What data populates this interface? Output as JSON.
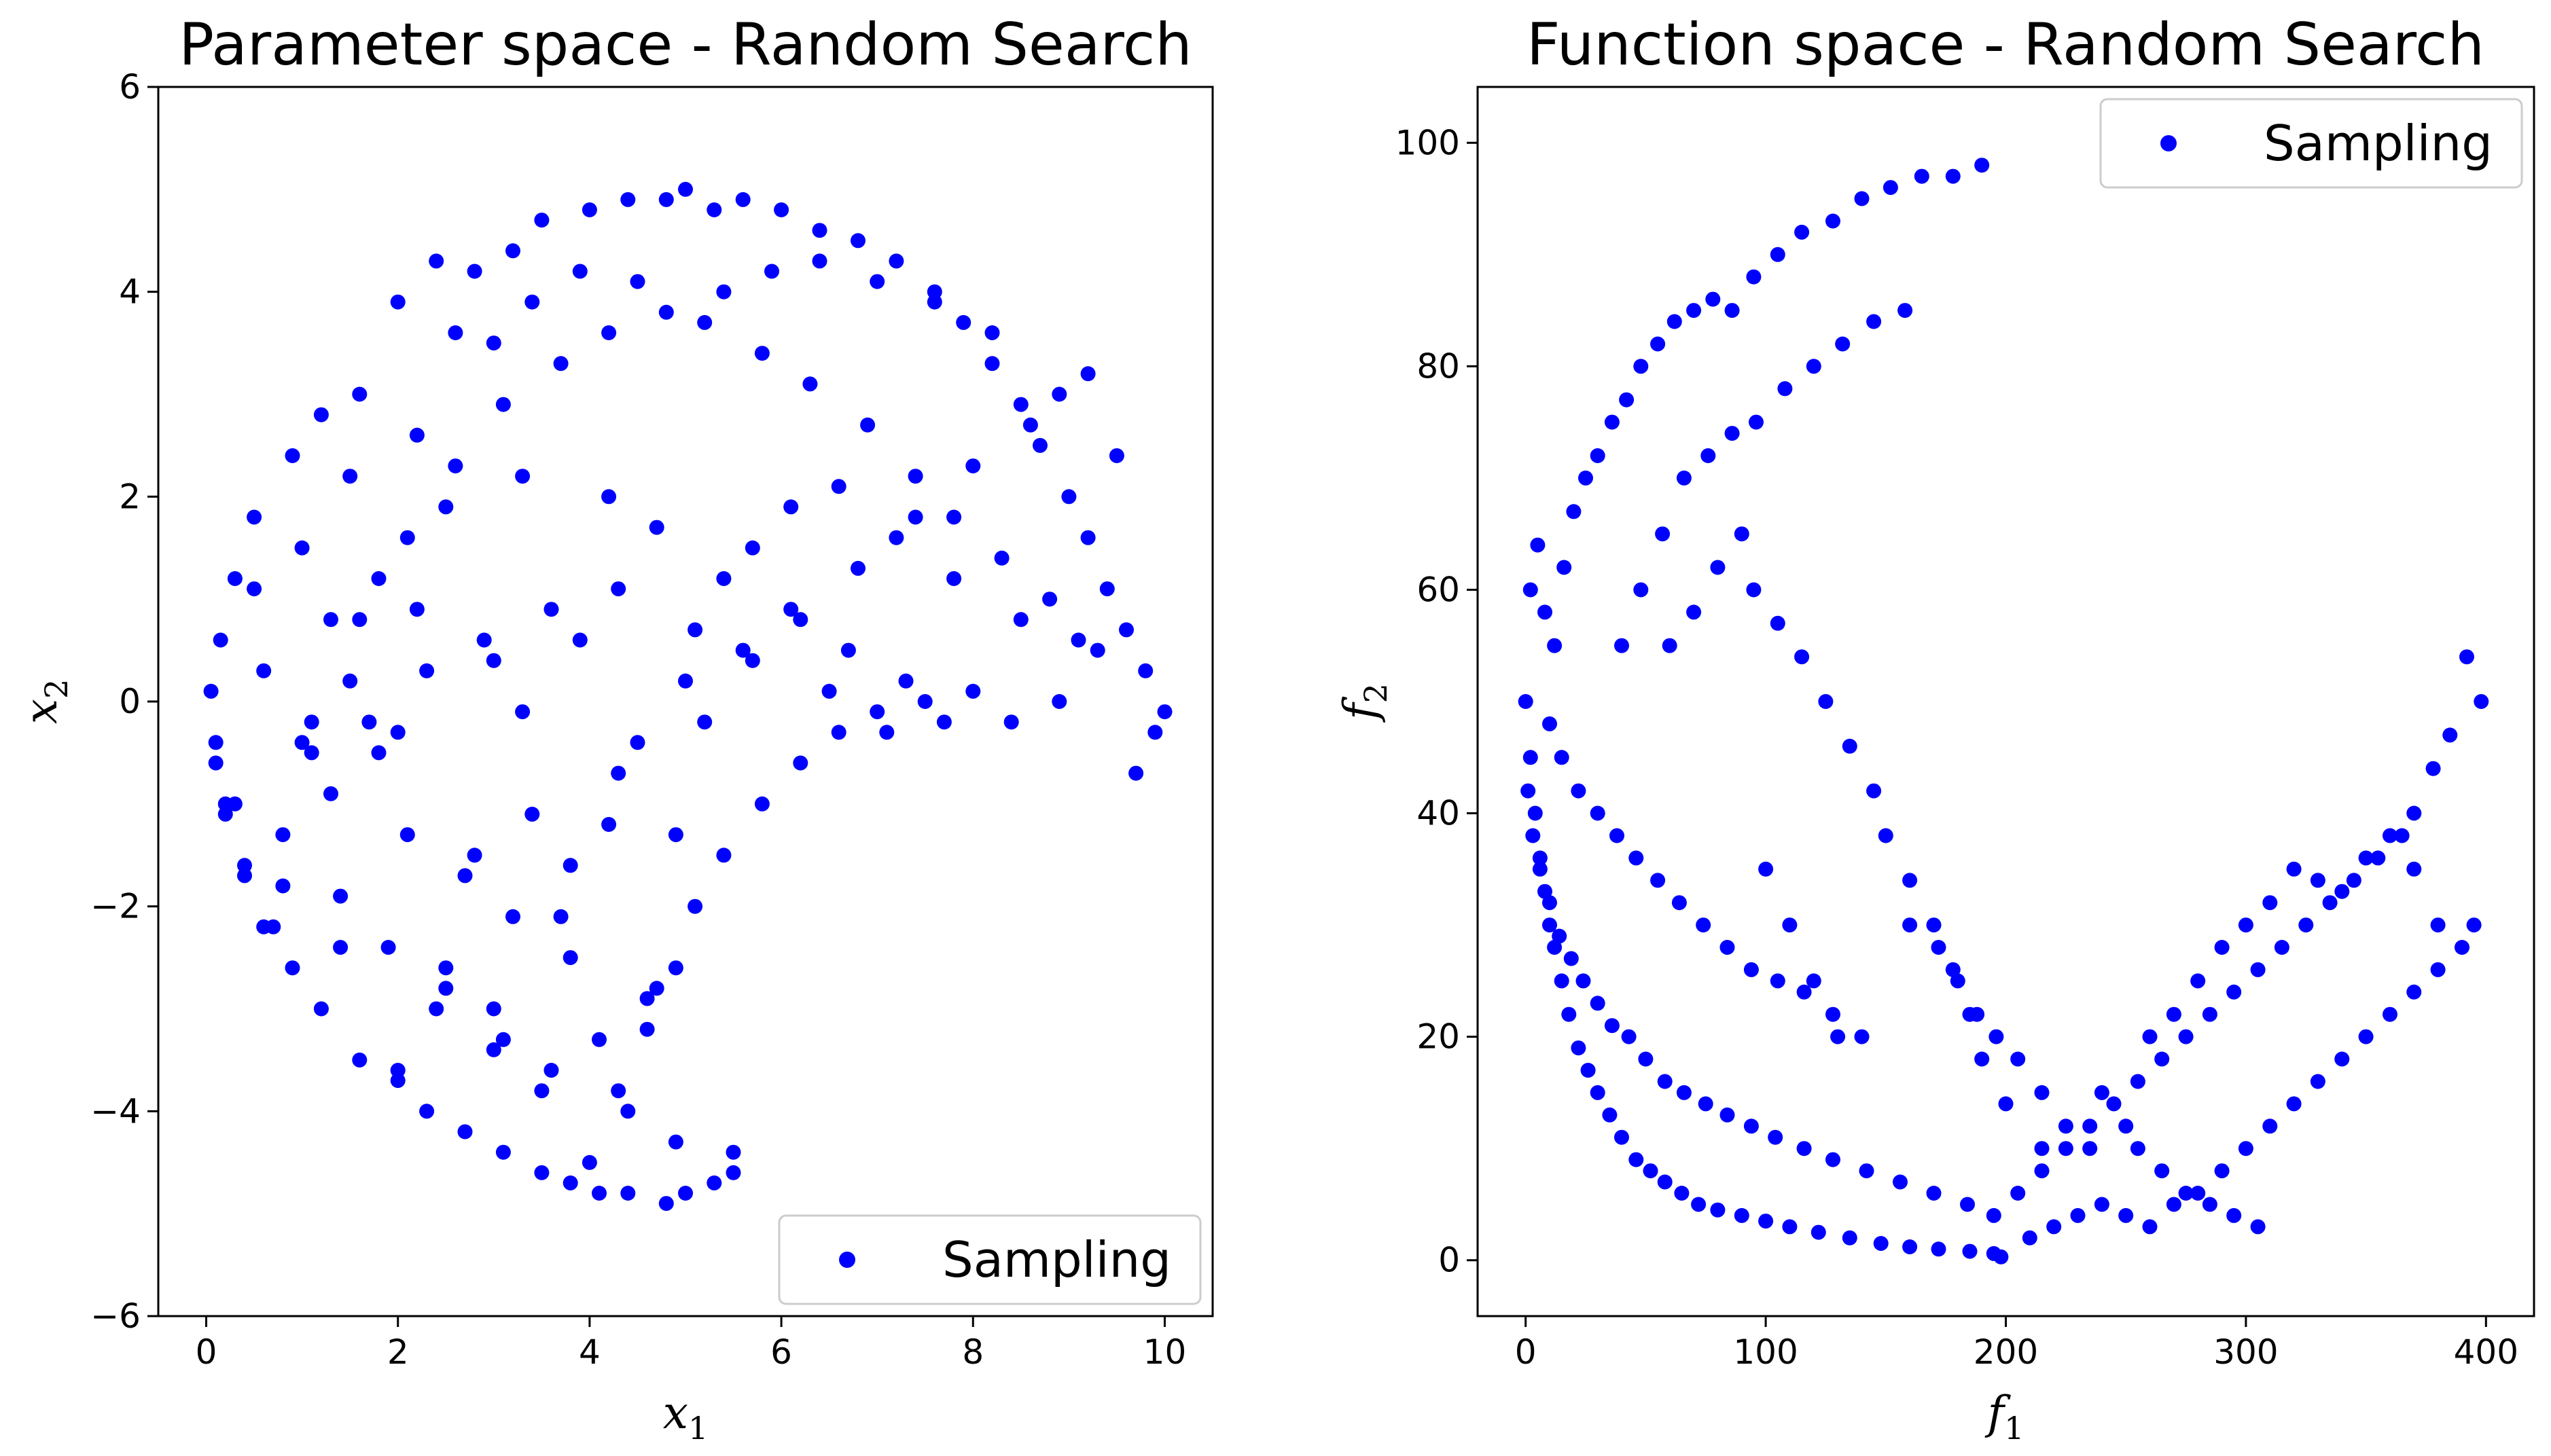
{
  "chart_data": [
    {
      "type": "scatter",
      "title": "Parameter space - Random Search",
      "xlabel": "x",
      "xlabel_sub": "1",
      "ylabel": "x",
      "ylabel_sub": "2",
      "xlim": [
        -0.5,
        10.5
      ],
      "ylim": [
        -6,
        6
      ],
      "xticks": [
        0,
        2,
        4,
        6,
        8,
        10
      ],
      "yticks": [
        -6,
        -4,
        -2,
        0,
        2,
        4,
        6
      ],
      "legend": {
        "label": "Sampling",
        "placement": "lower-right"
      },
      "marker_color": "#0000ff",
      "series": [
        {
          "name": "Sampling",
          "x": [
            0.05,
            0.1,
            0.15,
            0.2,
            0.3,
            0.4,
            0.5,
            0.7,
            0.9,
            1.2,
            1.6,
            2.0,
            2.4,
            2.8,
            3.2,
            3.5,
            4.0,
            4.4,
            4.8,
            5.0,
            5.3,
            5.6,
            6.0,
            6.4,
            6.8,
            7.2,
            7.6,
            7.9,
            8.2,
            8.5,
            8.7,
            9.0,
            9.2,
            9.4,
            9.6,
            9.8,
            9.9,
            10.0,
            9.7,
            9.3,
            8.9,
            8.4,
            8.0,
            7.5,
            7.0,
            6.6,
            6.2,
            5.8,
            5.4,
            5.1,
            4.9,
            4.6,
            4.3,
            4.0,
            5.5,
            5.3,
            5.0,
            4.8,
            4.4,
            4.1,
            3.8,
            3.5,
            3.1,
            2.7,
            2.3,
            2.0,
            1.6,
            1.2,
            0.9,
            0.6,
            0.4,
            0.2,
            0.1,
            1.0,
            1.5,
            2.2,
            2.6,
            3.0,
            3.4,
            3.9,
            4.5,
            5.2,
            5.8,
            6.3,
            6.9,
            7.4,
            7.8,
            8.3,
            8.8,
            9.1,
            1.3,
            1.8,
            2.5,
            3.3,
            4.2,
            4.7,
            5.4,
            6.1,
            6.7,
            7.3,
            7.7,
            1.1,
            1.7,
            2.3,
            2.9,
            3.6,
            4.3,
            5.1,
            5.7,
            6.5,
            7.1,
            2.1,
            2.7,
            3.2,
            3.8,
            4.6,
            1.4,
            1.9,
            2.4,
            3.0,
            3.5,
            4.1,
            4.7,
            0.8,
            1.3,
            1.8,
            2.8,
            3.7,
            4.2,
            2.5,
            3.1,
            3.6,
            4.4,
            4.9,
            5.5,
            0.6,
            1.0,
            1.5,
            2.0,
            2.2,
            3.0,
            3.3,
            3.9,
            4.5,
            5.0,
            5.6,
            6.2,
            6.8,
            7.4,
            8.0,
            8.6,
            9.2,
            0.5,
            1.1,
            1.6,
            2.1,
            2.6,
            3.1,
            3.7,
            4.2,
            4.8,
            5.4,
            5.9,
            6.4,
            7.0,
            7.6,
            8.2,
            8.9,
            9.5,
            0.3,
            0.8,
            1.4,
            2.0,
            2.5,
            3.0,
            3.4,
            3.8,
            4.3,
            4.9,
            5.2,
            5.7,
            6.1,
            6.6,
            7.2,
            7.8,
            8.5
          ],
          "y": [
            0.1,
            -0.4,
            0.6,
            -1.0,
            1.2,
            -1.6,
            1.8,
            -2.2,
            2.4,
            2.8,
            3.0,
            3.9,
            4.3,
            4.2,
            4.4,
            4.7,
            4.8,
            4.9,
            4.9,
            5.0,
            4.8,
            4.9,
            4.8,
            4.6,
            4.5,
            4.3,
            4.0,
            3.7,
            3.3,
            2.9,
            2.5,
            2.0,
            1.6,
            1.1,
            0.7,
            0.3,
            -0.3,
            -0.1,
            -0.7,
            0.5,
            0.0,
            -0.2,
            0.1,
            0.0,
            -0.1,
            -0.3,
            -0.6,
            -1.0,
            -1.5,
            -2.0,
            -2.6,
            -3.2,
            -3.8,
            -4.5,
            -4.4,
            -4.7,
            -4.8,
            -4.9,
            -4.8,
            -4.8,
            -4.7,
            -4.6,
            -4.4,
            -4.2,
            -4.0,
            -3.7,
            -3.5,
            -3.0,
            -2.6,
            -2.2,
            -1.7,
            -1.1,
            -0.6,
            1.5,
            2.2,
            2.6,
            3.6,
            3.5,
            3.9,
            4.2,
            4.1,
            3.7,
            3.4,
            3.1,
            2.7,
            2.2,
            1.8,
            1.4,
            1.0,
            0.6,
            0.8,
            1.2,
            1.9,
            2.2,
            2.0,
            1.7,
            1.2,
            0.9,
            0.5,
            0.2,
            -0.2,
            -0.5,
            -0.2,
            0.3,
            0.6,
            0.9,
            1.1,
            0.7,
            0.4,
            0.1,
            -0.3,
            -1.3,
            -1.7,
            -2.1,
            -2.5,
            -2.9,
            -1.9,
            -2.4,
            -3.0,
            -3.4,
            -3.8,
            -3.3,
            -2.8,
            -1.3,
            -0.9,
            -0.5,
            -1.5,
            -2.1,
            -1.2,
            -2.8,
            -3.3,
            -3.6,
            -4.0,
            -4.3,
            -4.6,
            0.3,
            -0.4,
            0.2,
            -0.3,
            0.9,
            0.4,
            -0.1,
            0.6,
            -0.4,
            0.2,
            0.5,
            0.8,
            1.3,
            1.8,
            2.3,
            2.7,
            3.2,
            1.1,
            -0.2,
            0.8,
            1.6,
            2.3,
            2.9,
            3.3,
            3.6,
            3.8,
            4.0,
            4.2,
            4.3,
            4.1,
            3.9,
            3.6,
            3.0,
            2.4,
            -1.0,
            -1.8,
            -2.4,
            -3.6,
            -2.6,
            -3.0,
            -1.1,
            -1.6,
            -0.7,
            -1.3,
            -0.2,
            1.5,
            1.9,
            2.1,
            1.6,
            1.2,
            0.8
          ]
        }
      ]
    },
    {
      "type": "scatter",
      "title": "Function space - Random Search",
      "xlabel": "f",
      "xlabel_sub": "1",
      "ylabel": "f",
      "ylabel_sub": "2",
      "xlim": [
        -20,
        420
      ],
      "ylim": [
        -5,
        105
      ],
      "xticks": [
        0,
        100,
        200,
        300,
        400
      ],
      "yticks": [
        0,
        20,
        40,
        60,
        80,
        100
      ],
      "legend": {
        "label": "Sampling",
        "placement": "upper-right"
      },
      "marker_color": "#0000ff",
      "series": [
        {
          "name": "Sampling",
          "x": [
            0,
            2,
            4,
            6,
            8,
            10,
            12,
            15,
            18,
            22,
            26,
            30,
            35,
            40,
            46,
            52,
            58,
            65,
            72,
            80,
            90,
            100,
            110,
            122,
            135,
            148,
            160,
            172,
            185,
            195,
            198,
            2,
            5,
            8,
            12,
            16,
            20,
            25,
            30,
            36,
            42,
            48,
            55,
            62,
            70,
            78,
            86,
            95,
            105,
            115,
            128,
            140,
            152,
            165,
            178,
            190,
            1,
            3,
            6,
            10,
            14,
            19,
            24,
            30,
            36,
            43,
            50,
            58,
            66,
            75,
            84,
            94,
            104,
            116,
            128,
            142,
            156,
            170,
            184,
            10,
            15,
            22,
            30,
            38,
            46,
            55,
            64,
            74,
            84,
            94,
            105,
            116,
            128,
            140,
            40,
            48,
            57,
            66,
            76,
            86,
            96,
            108,
            120,
            132,
            145,
            158,
            160,
            172,
            180,
            188,
            196,
            205,
            215,
            225,
            235,
            210,
            220,
            230,
            240,
            250,
            260,
            270,
            280,
            290,
            300,
            310,
            320,
            330,
            340,
            350,
            360,
            370,
            380,
            390,
            395,
            398,
            392,
            385,
            378,
            370,
            365,
            355,
            345,
            335,
            325,
            315,
            305,
            295,
            285,
            275,
            265,
            255,
            245,
            235,
            225,
            215,
            205,
            195,
            260,
            270,
            280,
            290,
            300,
            310,
            320,
            330,
            340,
            350,
            360,
            370,
            380,
            240,
            250,
            255,
            265,
            275,
            285,
            295,
            305,
            100,
            110,
            120,
            130,
            60,
            70,
            80,
            90,
            95,
            105,
            115,
            125,
            135,
            145,
            150,
            160,
            170,
            178,
            185,
            190,
            200,
            215
          ],
          "y": [
            50,
            45,
            40,
            36,
            33,
            30,
            28,
            25,
            22,
            19,
            17,
            15,
            13,
            11,
            9,
            8,
            7,
            6,
            5,
            4.5,
            4,
            3.5,
            3,
            2.5,
            2,
            1.5,
            1.2,
            1,
            0.8,
            0.6,
            0.3,
            60,
            64,
            58,
            55,
            62,
            67,
            70,
            72,
            75,
            77,
            80,
            82,
            84,
            85,
            86,
            85,
            88,
            90,
            92,
            93,
            95,
            96,
            97,
            97,
            98,
            42,
            38,
            35,
            32,
            29,
            27,
            25,
            23,
            21,
            20,
            18,
            16,
            15,
            14,
            13,
            12,
            11,
            10,
            9,
            8,
            7,
            6,
            5,
            48,
            45,
            42,
            40,
            38,
            36,
            34,
            32,
            30,
            28,
            26,
            25,
            24,
            22,
            20,
            55,
            60,
            65,
            70,
            72,
            74,
            75,
            78,
            80,
            82,
            84,
            85,
            30,
            28,
            25,
            22,
            20,
            18,
            15,
            12,
            10,
            2,
            3,
            4,
            5,
            4,
            3,
            5,
            6,
            8,
            10,
            12,
            14,
            16,
            18,
            20,
            22,
            24,
            26,
            28,
            30,
            50,
            54,
            47,
            44,
            40,
            38,
            36,
            34,
            32,
            30,
            28,
            26,
            24,
            22,
            20,
            18,
            16,
            14,
            12,
            10,
            8,
            6,
            4,
            20,
            22,
            25,
            28,
            30,
            32,
            35,
            34,
            33,
            36,
            38,
            35,
            30,
            15,
            12,
            10,
            8,
            6,
            5,
            4,
            3,
            35,
            30,
            25,
            20,
            55,
            58,
            62,
            65,
            60,
            57,
            54,
            50,
            46,
            42,
            38,
            34,
            30,
            26,
            22,
            18,
            14,
            10
          ]
        }
      ]
    }
  ]
}
